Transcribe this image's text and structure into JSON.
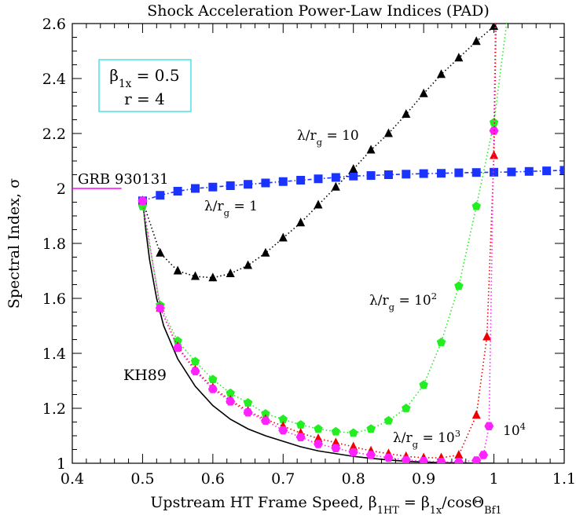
{
  "chart_data": {
    "type": "scatter",
    "title": "Shock Acceleration Power-Law Indices (PAD)",
    "xlabel_parts": [
      "Upstream HT Frame Speed, ",
      "β",
      "1HT",
      " = ",
      "β",
      "1x",
      "/cosΘ",
      "Bf1"
    ],
    "ylabel_parts": [
      "Spectral Index, ",
      "σ"
    ],
    "xlim": [
      0.4,
      1.1
    ],
    "ylim": [
      1.0,
      2.6
    ],
    "xticks": [
      0.4,
      0.5,
      0.6,
      0.7,
      0.8,
      0.9,
      1,
      1.1
    ],
    "xtick_labels": [
      "0.4",
      "0.5",
      "0.6",
      "0.7",
      "0.8",
      "0.9",
      "1",
      "1.1"
    ],
    "yticks": [
      1,
      1.2,
      1.4,
      1.6,
      1.8,
      2,
      2.2,
      2.4,
      2.6
    ],
    "ytick_labels": [
      "1",
      "1.2",
      "1.4",
      "1.6",
      "1.8",
      "2",
      "2.2",
      "2.4",
      "2.6"
    ],
    "grid": false,
    "parameter_box": {
      "line1": [
        "β",
        "1x",
        " = 0.5"
      ],
      "line2": "r = 4",
      "border_color": "#33dddd"
    },
    "reference_line": {
      "label": "GRB 930131",
      "y": 2.0,
      "x": [
        0.4,
        0.47
      ],
      "color": "#ff00ff"
    },
    "kh89": {
      "label": "KH89",
      "color": "#000000",
      "x": [
        0.5,
        0.505,
        0.51,
        0.52,
        0.53,
        0.55,
        0.575,
        0.6,
        0.625,
        0.65,
        0.675,
        0.7,
        0.725,
        0.75,
        0.775,
        0.8,
        0.825,
        0.85,
        0.875,
        0.9,
        0.925,
        0.95,
        0.975,
        1.0
      ],
      "y": [
        1.96,
        1.84,
        1.74,
        1.6,
        1.5,
        1.38,
        1.28,
        1.21,
        1.16,
        1.125,
        1.1,
        1.08,
        1.06,
        1.045,
        1.035,
        1.025,
        1.018,
        1.012,
        1.007,
        1.004,
        1.002,
        1.001,
        1.0,
        1.0
      ]
    },
    "series": [
      {
        "label_parts": [
          "λ/r",
          "g",
          " = 1"
        ],
        "marker": "square",
        "color": "#1a33ff",
        "x": [
          0.5,
          0.525,
          0.55,
          0.575,
          0.6,
          0.625,
          0.65,
          0.675,
          0.7,
          0.725,
          0.75,
          0.775,
          0.8,
          0.825,
          0.85,
          0.875,
          0.9,
          0.925,
          0.95,
          0.975,
          1.0,
          1.025,
          1.05,
          1.075,
          1.1
        ],
        "y": [
          1.955,
          1.975,
          1.99,
          2.0,
          2.005,
          2.01,
          2.015,
          2.02,
          2.025,
          2.03,
          2.035,
          2.04,
          2.045,
          2.047,
          2.05,
          2.052,
          2.054,
          2.055,
          2.057,
          2.058,
          2.059,
          2.06,
          2.062,
          2.064,
          2.066
        ]
      },
      {
        "label_parts": [
          "λ/r",
          "g",
          " = 10"
        ],
        "marker": "triangle",
        "color": "#000000",
        "x": [
          0.5,
          0.525,
          0.55,
          0.575,
          0.6,
          0.625,
          0.65,
          0.675,
          0.7,
          0.725,
          0.75,
          0.775,
          0.8,
          0.825,
          0.85,
          0.875,
          0.9,
          0.925,
          0.95,
          0.975,
          1.0
        ],
        "y": [
          1.955,
          1.765,
          1.7,
          1.68,
          1.675,
          1.69,
          1.72,
          1.765,
          1.82,
          1.875,
          1.94,
          2.005,
          2.07,
          2.14,
          2.2,
          2.27,
          2.345,
          2.415,
          2.475,
          2.535,
          2.59
        ]
      },
      {
        "label_parts": [
          "λ/r",
          "g",
          " = 10",
          "2"
        ],
        "marker": "pentagon",
        "color": "#22ee22",
        "x": [
          0.5,
          0.525,
          0.55,
          0.575,
          0.6,
          0.625,
          0.65,
          0.675,
          0.7,
          0.725,
          0.75,
          0.775,
          0.8,
          0.825,
          0.85,
          0.875,
          0.9,
          0.925,
          0.95,
          0.975,
          1.0
        ],
        "y": [
          1.935,
          1.575,
          1.445,
          1.37,
          1.305,
          1.255,
          1.22,
          1.18,
          1.16,
          1.14,
          1.125,
          1.115,
          1.11,
          1.125,
          1.155,
          1.2,
          1.285,
          1.44,
          1.645,
          1.935,
          2.24
        ]
      },
      {
        "label_parts": [
          "λ/r",
          "g",
          " = 10",
          "3"
        ],
        "marker": "triangle",
        "color": "#ee0000",
        "x": [
          0.5,
          0.525,
          0.55,
          0.575,
          0.6,
          0.625,
          0.65,
          0.675,
          0.7,
          0.725,
          0.75,
          0.775,
          0.8,
          0.825,
          0.85,
          0.875,
          0.9,
          0.925,
          0.95,
          0.975,
          0.99,
          1.0
        ],
        "y": [
          1.955,
          1.565,
          1.425,
          1.34,
          1.275,
          1.23,
          1.19,
          1.16,
          1.135,
          1.11,
          1.09,
          1.075,
          1.06,
          1.045,
          1.035,
          1.025,
          1.02,
          1.02,
          1.03,
          1.175,
          1.46,
          2.12
        ]
      },
      {
        "label_parts": [
          "10",
          "4"
        ],
        "marker": "hexagon",
        "color": "#ff22ff",
        "x": [
          0.5,
          0.525,
          0.55,
          0.575,
          0.6,
          0.625,
          0.65,
          0.675,
          0.7,
          0.725,
          0.75,
          0.775,
          0.8,
          0.825,
          0.85,
          0.875,
          0.9,
          0.925,
          0.95,
          0.975,
          0.985,
          0.993,
          1.0
        ],
        "y": [
          1.955,
          1.565,
          1.42,
          1.335,
          1.27,
          1.225,
          1.185,
          1.155,
          1.12,
          1.095,
          1.07,
          1.055,
          1.04,
          1.03,
          1.02,
          1.012,
          1.008,
          1.005,
          1.005,
          1.01,
          1.03,
          1.135,
          2.21
        ]
      }
    ]
  }
}
